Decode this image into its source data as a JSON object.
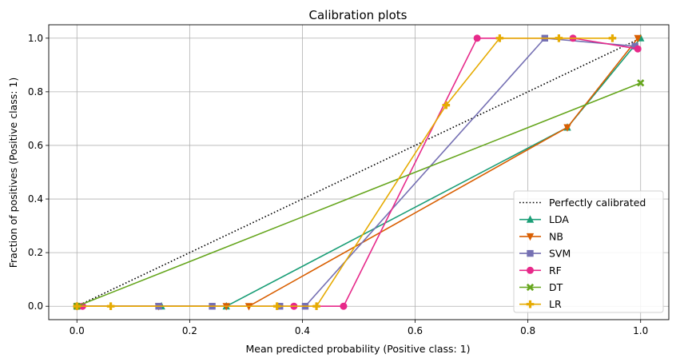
{
  "chart_data": {
    "type": "line",
    "title": "Calibration plots",
    "xlabel": "Mean predicted probability (Positive class: 1)",
    "ylabel": "Fraction of positives (Positive class: 1)",
    "xlim": [
      -0.05,
      1.05
    ],
    "ylim": [
      -0.05,
      1.05
    ],
    "xticks": [
      0.0,
      0.2,
      0.4,
      0.6,
      0.8,
      1.0
    ],
    "yticks": [
      0.0,
      0.2,
      0.4,
      0.6,
      0.8,
      1.0
    ],
    "xtick_labels": [
      "0.0",
      "0.2",
      "0.4",
      "0.6",
      "0.8",
      "1.0"
    ],
    "ytick_labels": [
      "0.0",
      "0.2",
      "0.4",
      "0.6",
      "0.8",
      "1.0"
    ],
    "grid": true,
    "legend_position": "lower-right",
    "reference": {
      "name": "Perfectly calibrated",
      "x": [
        0,
        1
      ],
      "y": [
        0,
        1
      ],
      "color": "#000000",
      "style": "dotted"
    },
    "series": [
      {
        "name": "LDA",
        "color": "#1b9e77",
        "marker": "triangle-up",
        "x": [
          0.0,
          0.15,
          0.265,
          0.87,
          1.0
        ],
        "y": [
          0.0,
          0.0,
          0.0,
          0.667,
          1.0
        ]
      },
      {
        "name": "NB",
        "color": "#d95f02",
        "marker": "triangle-down",
        "x": [
          0.0,
          0.145,
          0.265,
          0.305,
          0.87,
          0.995
        ],
        "y": [
          0.0,
          0.0,
          0.0,
          0.0,
          0.667,
          1.0
        ]
      },
      {
        "name": "SVM",
        "color": "#7570b3",
        "marker": "square",
        "x": [
          0.0,
          0.145,
          0.24,
          0.36,
          0.405,
          0.83,
          0.99
        ],
        "y": [
          0.0,
          0.0,
          0.0,
          0.0,
          0.0,
          1.0,
          0.97
        ]
      },
      {
        "name": "RF",
        "color": "#e7298a",
        "marker": "circle",
        "x": [
          0.01,
          0.385,
          0.473,
          0.71,
          0.88,
          0.995
        ],
        "y": [
          0.0,
          0.0,
          0.0,
          1.0,
          1.0,
          0.96
        ]
      },
      {
        "name": "DT",
        "color": "#66a61e",
        "marker": "x-filled",
        "x": [
          0.0,
          1.0
        ],
        "y": [
          0.0,
          0.833
        ]
      },
      {
        "name": "LR",
        "color": "#e6ab02",
        "marker": "plus-filled",
        "x": [
          0.0,
          0.06,
          0.355,
          0.425,
          0.655,
          0.75,
          0.855,
          0.95
        ],
        "y": [
          0.0,
          0.0,
          0.0,
          0.0,
          0.75,
          1.0,
          1.0,
          1.0
        ]
      }
    ]
  }
}
